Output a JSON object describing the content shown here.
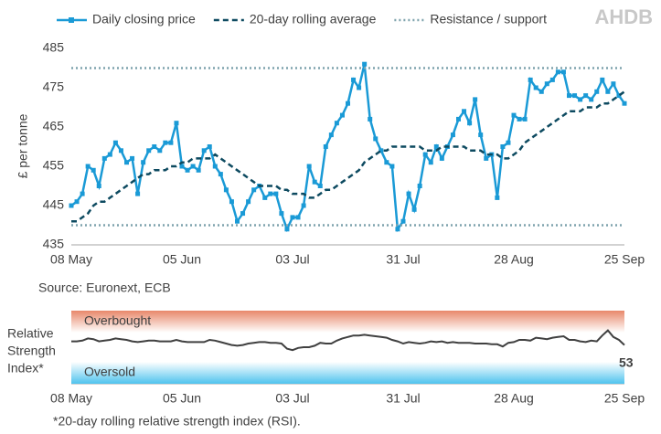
{
  "logo": "AHDB",
  "chart_data": [
    {
      "type": "line",
      "ylabel": "£ per tonne",
      "source": "Source: Euronext, ECB",
      "categories": [
        "08 May",
        null,
        null,
        null,
        null,
        null,
        null,
        null,
        null,
        null,
        null,
        null,
        null,
        null,
        null,
        null,
        null,
        null,
        null,
        null,
        "05 Jun",
        null,
        null,
        null,
        null,
        null,
        null,
        null,
        null,
        null,
        null,
        null,
        null,
        null,
        null,
        null,
        null,
        null,
        null,
        null,
        "03 Jul",
        null,
        null,
        null,
        null,
        null,
        null,
        null,
        null,
        null,
        null,
        null,
        null,
        null,
        null,
        null,
        null,
        null,
        null,
        null,
        "31 Jul",
        null,
        null,
        null,
        null,
        null,
        null,
        null,
        null,
        null,
        null,
        null,
        null,
        null,
        null,
        null,
        null,
        null,
        null,
        null,
        "28 Aug",
        null,
        null,
        null,
        null,
        null,
        null,
        null,
        null,
        null,
        null,
        null,
        null,
        null,
        null,
        null,
        null,
        null,
        null,
        null,
        "25 Sep"
      ],
      "ylim": [
        435,
        485
      ],
      "yticks": [
        435,
        445,
        455,
        465,
        475,
        485
      ],
      "series": [
        {
          "name": "Daily closing price",
          "color": "#1a9ad6",
          "style": "line-markers",
          "values": [
            445,
            446,
            448,
            455,
            454,
            450,
            457,
            458,
            461,
            459,
            456,
            457,
            448,
            456,
            459,
            460,
            459,
            461,
            461,
            466,
            455,
            454,
            455,
            454,
            459,
            460,
            455,
            453,
            449,
            446,
            441,
            443,
            446,
            449,
            450,
            447,
            448,
            448,
            443,
            439,
            442,
            442,
            445,
            455,
            451,
            450,
            460,
            463,
            466,
            468,
            471,
            477,
            475,
            481,
            467,
            462,
            459,
            456,
            455,
            439,
            441,
            448,
            444,
            450,
            458,
            456,
            460,
            457,
            460,
            463,
            467,
            469,
            466,
            472,
            463,
            457,
            458,
            447,
            460,
            461,
            468,
            467,
            467,
            477,
            475,
            474,
            476,
            477,
            479,
            479,
            473,
            473,
            472,
            473,
            472,
            474,
            477,
            474,
            476,
            473,
            471
          ]
        },
        {
          "name": "20-day rolling average",
          "color": "#0d4a60",
          "style": "dashed",
          "values": [
            441,
            441,
            442,
            443,
            445,
            446,
            446,
            447,
            448,
            449,
            450,
            451,
            452,
            453,
            453,
            454,
            454,
            454,
            455,
            455,
            456,
            456,
            457,
            457,
            457,
            457,
            458,
            457,
            456,
            455,
            454,
            453,
            452,
            451,
            450,
            450,
            450,
            450,
            449,
            449,
            448,
            448,
            448,
            447,
            447,
            448,
            449,
            449,
            450,
            451,
            452,
            453,
            454,
            456,
            457,
            458,
            459,
            459,
            460,
            460,
            460,
            460,
            460,
            460,
            459,
            459,
            459,
            460,
            460,
            460,
            460,
            460,
            459,
            459,
            459,
            458,
            458,
            458,
            457,
            457,
            458,
            459,
            461,
            462,
            463,
            464,
            465,
            466,
            467,
            468,
            469,
            469,
            469,
            470,
            470,
            470,
            471,
            471,
            472,
            473,
            474
          ]
        },
        {
          "name": "Resistance / support",
          "color": "#7fa3ad",
          "style": "dotted",
          "levels": [
            480,
            440
          ]
        }
      ]
    },
    {
      "type": "line",
      "ylabel": [
        "Relative",
        "Strength",
        "Index*"
      ],
      "footnote": "*20-day rolling relative strength index (RSI).",
      "categories": [
        "08 May",
        null,
        null,
        null,
        null,
        null,
        null,
        null,
        null,
        null,
        null,
        null,
        null,
        null,
        null,
        null,
        null,
        null,
        null,
        null,
        "05 Jun",
        null,
        null,
        null,
        null,
        null,
        null,
        null,
        null,
        null,
        null,
        null,
        null,
        null,
        null,
        null,
        null,
        null,
        null,
        null,
        "03 Jul",
        null,
        null,
        null,
        null,
        null,
        null,
        null,
        null,
        null,
        null,
        null,
        null,
        null,
        null,
        null,
        null,
        null,
        null,
        null,
        "31 Jul",
        null,
        null,
        null,
        null,
        null,
        null,
        null,
        null,
        null,
        null,
        null,
        null,
        null,
        null,
        null,
        null,
        null,
        null,
        null,
        "28 Aug",
        null,
        null,
        null,
        null,
        null,
        null,
        null,
        null,
        null,
        null,
        null,
        null,
        null,
        null,
        null,
        null,
        null,
        null,
        null,
        "25 Sep"
      ],
      "ylim": [
        0,
        100
      ],
      "zones": [
        {
          "label": "Overbought",
          "from": 70,
          "to": 100,
          "color": "#e8876a"
        },
        {
          "label": "Oversold",
          "from": 0,
          "to": 30,
          "color": "#4fc3ee"
        }
      ],
      "series": [
        {
          "color": "#404040",
          "values": [
            58,
            58,
            59,
            62,
            61,
            58,
            59,
            60,
            62,
            61,
            60,
            58,
            57,
            58,
            59,
            59,
            58,
            58,
            58,
            60,
            58,
            57,
            57,
            57,
            57,
            60,
            59,
            57,
            55,
            53,
            52,
            53,
            55,
            56,
            57,
            57,
            56,
            56,
            55,
            48,
            46,
            49,
            50,
            50,
            52,
            56,
            55,
            55,
            59,
            62,
            64,
            66,
            66,
            67,
            66,
            65,
            64,
            63,
            60,
            58,
            55,
            57,
            56,
            55,
            56,
            58,
            57,
            58,
            56,
            57,
            56,
            56,
            56,
            55,
            55,
            55,
            54,
            54,
            51,
            56,
            57,
            60,
            60,
            59,
            63,
            62,
            61,
            63,
            64,
            65,
            60,
            60,
            58,
            57,
            59,
            58,
            66,
            73,
            64,
            60,
            53
          ]
        }
      ]
    }
  ]
}
